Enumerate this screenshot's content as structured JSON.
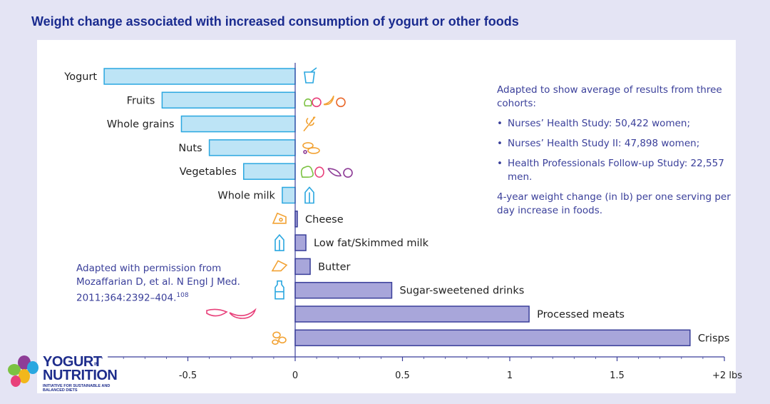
{
  "header": {
    "title": "Weight change associated with increased consumption of yogurt or other foods"
  },
  "chart_data": {
    "type": "bar",
    "orientation": "horizontal",
    "categories": [
      "Yogurt",
      "Fruits",
      "Whole grains",
      "Nuts",
      "Vegetables",
      "Whole milk",
      "Cheese",
      "Low fat/Skimmed milk",
      "Butter",
      "Sugar-sweetened drinks",
      "Processed meats",
      "Crisps"
    ],
    "values": [
      -0.89,
      -0.62,
      -0.53,
      -0.4,
      -0.24,
      -0.06,
      0.01,
      0.05,
      0.07,
      0.45,
      1.09,
      1.84
    ],
    "xlim": [
      -0.9,
      2.0
    ],
    "xticks": [
      "-0.5",
      "0",
      "0.5",
      "1",
      "1.5",
      "+2 lbs"
    ],
    "xtick_values": [
      -0.5,
      0,
      0.5,
      1,
      1.5,
      2
    ],
    "grid": false,
    "colors": {
      "negative_fill": "#bde4f6",
      "negative_stroke": "#2aa7e0",
      "positive_fill": "#a8a6da",
      "positive_stroke": "#3a3f9a",
      "axis": "#3a3f9a"
    }
  },
  "notes": {
    "cohorts_intro": "Adapted to show average of results from three cohorts:",
    "cohorts": [
      "Nurses’ Health Study: 50,422 women;",
      "Nurses’ Health Study II: 47,898 women;",
      "Health Professionals Follow-up Study: 22,557 men."
    ],
    "footnote": "4-year weight change (in lb) per one serving per day increase in foods.",
    "source": "Adapted with permission from Mozaffarian D, et al. N Engl J Med. 2011;364:2392–404.",
    "source_ref": "108"
  },
  "logo": {
    "line1": "YOGURT",
    "in": "IN",
    "line2": "NUTRITION",
    "tagline": "INITIATIVE FOR SUSTAINABLE AND BALANCED DIETS"
  },
  "icons": [
    "yogurt-cup-icon",
    "fruits-icon",
    "wheat-icon",
    "nuts-icon",
    "vegetables-icon",
    "milk-carton-icon",
    "cheese-icon",
    "milk-carton-icon",
    "butter-icon",
    "bottle-icon",
    "meat-icon",
    "crisps-icon"
  ]
}
